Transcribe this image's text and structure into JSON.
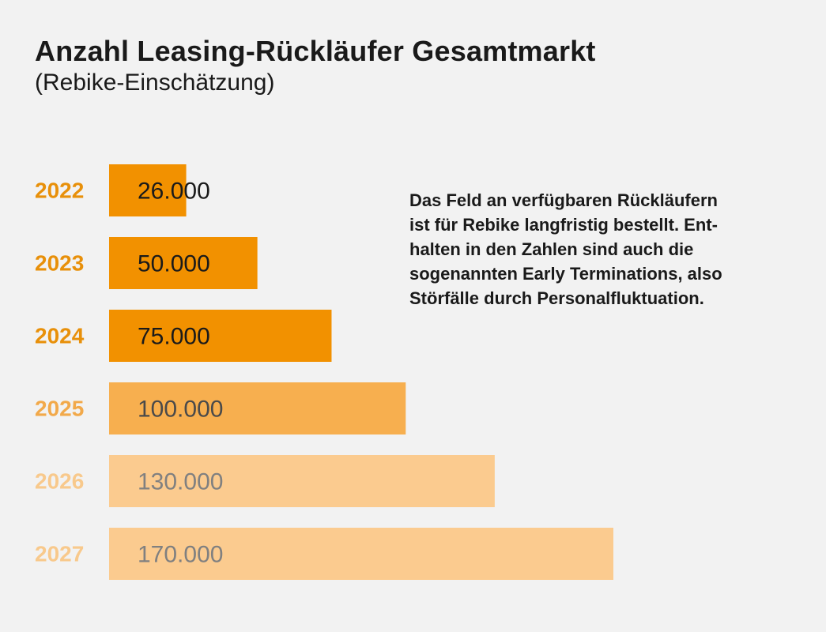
{
  "chart_data": {
    "type": "bar",
    "orientation": "horizontal",
    "title": "Anzahl Leasing-Rückläufer Gesamtmarkt",
    "subtitle": "(Rebike-Einschätzung)",
    "note": "Das Feld an verfügbaren Rückläufern\nist für Rebike langfristig bestellt. Ent-\nhalten in den Zahlen sind auch die\nsogenannten Early Terminations, also\nStörfälle durch Personalfluktuation.",
    "categories": [
      "2022",
      "2023",
      "2024",
      "2025",
      "2026",
      "2027"
    ],
    "values": [
      26000,
      50000,
      75000,
      100000,
      130000,
      170000
    ],
    "value_labels": [
      "26.000",
      "50.000",
      "75.000",
      "100.000",
      "130.000",
      "170.000"
    ],
    "bar_colors": [
      "#f29100",
      "#f29100",
      "#f29100",
      "#f7af4f",
      "#fbcb8f",
      "#fbcb8f"
    ],
    "category_label_colors": [
      "#e8900a",
      "#e8900a",
      "#e8900a",
      "#f2a94a",
      "#f8c98c",
      "#f8c98c"
    ],
    "value_label_colors": [
      "#1a1a1a",
      "#1a1a1a",
      "#1a1a1a",
      "#4a4a4a",
      "#808080",
      "#808080"
    ],
    "xlim": [
      0,
      170000
    ],
    "grid": false,
    "legend": "none"
  }
}
